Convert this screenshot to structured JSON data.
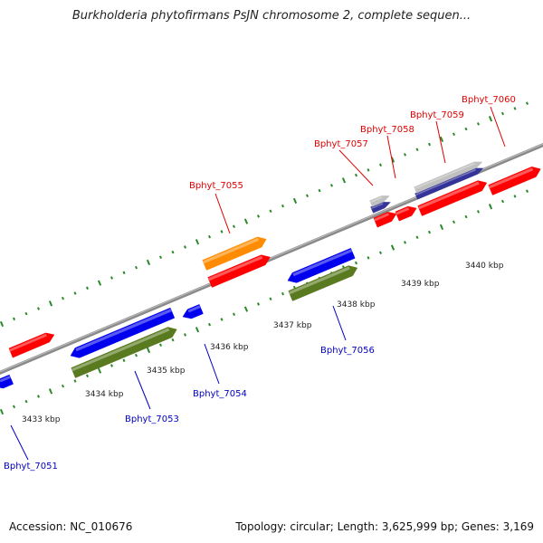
{
  "title": "Burkholderia phytofirmans PsJN chromosome 2, complete sequen...",
  "footer": {
    "accession": "Accession: NC_010676",
    "stats": "Topology: circular; Length: 3,625,999 bp; Genes: 3,169"
  },
  "colors": {
    "top_strand_label": "#e00000",
    "bottom_strand_label": "#0000c0",
    "tick_dots": "#2a8a2a",
    "backbone": "#8a8a8a",
    "gene_red": "#ff0000",
    "gene_blue": "#0000ee",
    "gene_green": "#5a7a20",
    "gene_orange": "#ff8c00",
    "gene_gray": "#c0c0c0",
    "gene_navy": "#333399"
  },
  "scale_labels": [
    "3433 kbp",
    "3434 kbp",
    "3435 kbp",
    "3436 kbp",
    "3437 kbp",
    "3438 kbp",
    "3439 kbp",
    "3440 kbp"
  ],
  "top_gene_labels": [
    "Bphyt_7055",
    "Bphyt_7057",
    "Bphyt_7058",
    "Bphyt_7059",
    "Bphyt_7060"
  ],
  "bottom_gene_labels": [
    "Bphyt_7051",
    "Bphyt_7053",
    "Bphyt_7054",
    "Bphyt_7056"
  ]
}
